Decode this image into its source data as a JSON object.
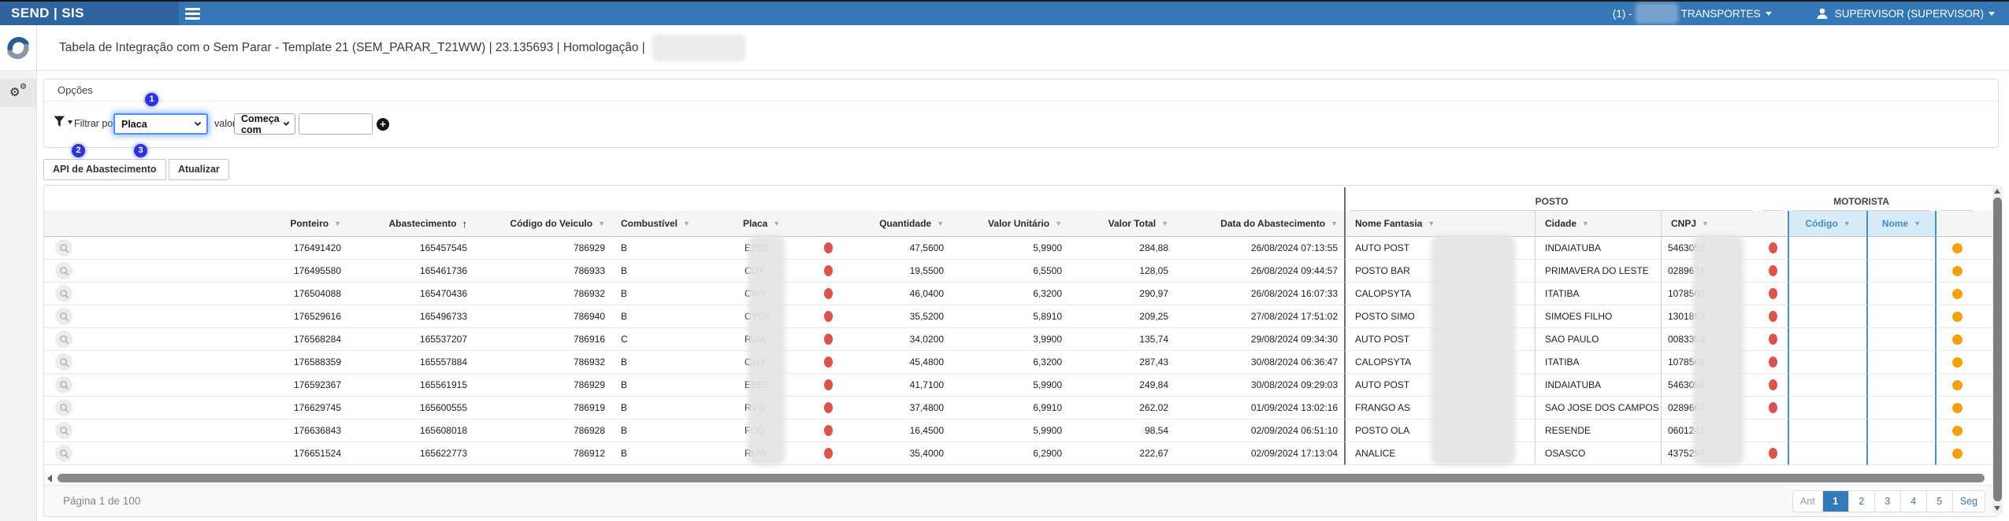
{
  "colors": {
    "navbar": "#3577b5",
    "navbar_brand": "#2d649e",
    "badge_blue": "#2d35d8",
    "red_dot": "#d9534f",
    "orange_dot": "#f3a00c",
    "motorista_col_bg": "#ddeefa",
    "motorista_col_text": "#3d8ebf",
    "active_page_bg": "#337ab7",
    "focused_select_border": "#4d90fe"
  },
  "navbar": {
    "brand": "SEND | SIS",
    "company_prefix": "(1) -",
    "company_name": "TRANSPORTES",
    "user": "SUPERVISOR (SUPERVISOR)"
  },
  "title_bar": {
    "title": "Tabela de Integração com o Sem Parar - Template 21 (SEM_PARAR_T21WW) | 23.135693 | Homologação |"
  },
  "options_panel": {
    "header": "Opções",
    "filter_label": "Filtrar por",
    "filter_field_value": "Placa",
    "value_label": "valor",
    "operator_value": "Começa com",
    "value_input": "",
    "value_input_placeholder": "",
    "badges": {
      "b1": "1",
      "b2": "2",
      "b3": "3"
    }
  },
  "buttons": {
    "api": "API de Abastecimento",
    "refresh": "Atualizar"
  },
  "table": {
    "groups": {
      "posto": "POSTO",
      "motorista": "MOTORISTA"
    },
    "headers": {
      "ponteiro": "Ponteiro",
      "abastecimento": "Abastecimento",
      "codigo_veiculo": "Código do Veiculo",
      "combustivel": "Combustível",
      "placa": "Placa",
      "quantidade": "Quantidade",
      "valor_unitario": "Valor Unitário",
      "valor_total": "Valor Total",
      "data_abastecimento": "Data do Abastecimento",
      "nome_fantasia": "Nome Fantasia",
      "cidade": "Cidade",
      "cnpj": "CNPJ",
      "codigo_motorista": "Código",
      "nome_motorista": "Nome"
    },
    "rows": [
      {
        "ponteiro": "176491420",
        "abastecimento": "165457545",
        "codigo_veiculo": "786929",
        "combustivel": "B",
        "placa": "EBB2",
        "dot1": true,
        "quantidade": "47,5600",
        "valor_unitario": "5,9900",
        "valor_total": "284,88",
        "data_abastecimento": "26/08/2024 07:13:55",
        "nome_fantasia": "AUTO POST",
        "cidade": "INDAIATUBA",
        "cnpj": "5463053",
        "dot2": true,
        "codigo_motorista": "",
        "nome_motorista": "",
        "dot3": true
      },
      {
        "ponteiro": "176495580",
        "abastecimento": "165461736",
        "codigo_veiculo": "786933",
        "combustivel": "B",
        "placa": "CUY",
        "dot1": true,
        "quantidade": "19,5500",
        "valor_unitario": "6,5500",
        "valor_total": "128,05",
        "data_abastecimento": "26/08/2024 09:44:57",
        "nome_fantasia": "POSTO BAR",
        "cidade": "PRIMAVERA DO LESTE",
        "cnpj": "0289671",
        "dot2": true,
        "codigo_motorista": "",
        "nome_motorista": "",
        "dot3": true
      },
      {
        "ponteiro": "176504088",
        "abastecimento": "165470436",
        "codigo_veiculo": "786932",
        "combustivel": "B",
        "placa": "CWY",
        "dot1": true,
        "quantidade": "46,0400",
        "valor_unitario": "6,3200",
        "valor_total": "290,97",
        "data_abastecimento": "26/08/2024 16:07:33",
        "nome_fantasia": "CALOPSYTA",
        "cidade": "ITATIBA",
        "cnpj": "1078568",
        "dot2": true,
        "codigo_motorista": "",
        "nome_motorista": "",
        "dot3": true
      },
      {
        "ponteiro": "176529616",
        "abastecimento": "165496733",
        "codigo_veiculo": "786940",
        "combustivel": "B",
        "placa": "CYS8",
        "dot1": true,
        "quantidade": "35,5200",
        "valor_unitario": "5,8910",
        "valor_total": "209,25",
        "data_abastecimento": "27/08/2024 17:51:02",
        "nome_fantasia": "POSTO SIMO",
        "cidade": "SIMOES FILHO",
        "cnpj": "1301853",
        "dot2": true,
        "codigo_motorista": "",
        "nome_motorista": "",
        "dot3": true
      },
      {
        "ponteiro": "176568284",
        "abastecimento": "165537207",
        "codigo_veiculo": "786916",
        "combustivel": "C",
        "placa": "RUW",
        "dot1": true,
        "quantidade": "34,0200",
        "valor_unitario": "3,9900",
        "valor_total": "135,74",
        "data_abastecimento": "29/08/2024 09:34:30",
        "nome_fantasia": "AUTO POST",
        "cidade": "SAO PAULO",
        "cnpj": "0083353",
        "dot2": true,
        "codigo_motorista": "",
        "nome_motorista": "",
        "dot3": true
      },
      {
        "ponteiro": "176588359",
        "abastecimento": "165557884",
        "codigo_veiculo": "786932",
        "combustivel": "B",
        "placa": "CWY",
        "dot1": true,
        "quantidade": "45,4800",
        "valor_unitario": "6,3200",
        "valor_total": "287,43",
        "data_abastecimento": "30/08/2024 06:36:47",
        "nome_fantasia": "CALOPSYTA",
        "cidade": "ITATIBA",
        "cnpj": "1078568",
        "dot2": true,
        "codigo_motorista": "",
        "nome_motorista": "",
        "dot3": true
      },
      {
        "ponteiro": "176592367",
        "abastecimento": "165561915",
        "codigo_veiculo": "786929",
        "combustivel": "B",
        "placa": "EBB2",
        "dot1": true,
        "quantidade": "41,7100",
        "valor_unitario": "5,9900",
        "valor_total": "249,84",
        "data_abastecimento": "30/08/2024 09:29:03",
        "nome_fantasia": "AUTO POST",
        "cidade": "INDAIATUBA",
        "cnpj": "5463053",
        "dot2": true,
        "codigo_motorista": "",
        "nome_motorista": "",
        "dot3": true
      },
      {
        "ponteiro": "176629745",
        "abastecimento": "165600555",
        "codigo_veiculo": "786919",
        "combustivel": "B",
        "placa": "RVG",
        "dot1": true,
        "quantidade": "37,4800",
        "valor_unitario": "6,9910",
        "valor_total": "262,02",
        "data_abastecimento": "01/09/2024 13:02:16",
        "nome_fantasia": "FRANGO AS",
        "cidade": "SAO JOSE DOS CAMPOS",
        "cnpj": "0289667",
        "dot2": true,
        "codigo_motorista": "",
        "nome_motorista": "",
        "dot3": true
      },
      {
        "ponteiro": "176636843",
        "abastecimento": "165608018",
        "codigo_veiculo": "786928",
        "combustivel": "B",
        "placa": "FOQ",
        "dot1": true,
        "quantidade": "16,4500",
        "valor_unitario": "5,9900",
        "valor_total": "98,54",
        "data_abastecimento": "02/09/2024 06:51:10",
        "nome_fantasia": "POSTO OLA",
        "cidade": "RESENDE",
        "cnpj": "0601241",
        "dot2": false,
        "codigo_motorista": "",
        "nome_motorista": "",
        "dot3": true
      },
      {
        "ponteiro": "176651524",
        "abastecimento": "165622773",
        "codigo_veiculo": "786912",
        "combustivel": "B",
        "placa": "RUW",
        "dot1": true,
        "quantidade": "35,4000",
        "valor_unitario": "6,2900",
        "valor_total": "222,67",
        "data_abastecimento": "02/09/2024 17:13:04",
        "nome_fantasia": "ANALICE",
        "cidade": "OSASCO",
        "cnpj": "4375297",
        "dot2": true,
        "codigo_motorista": "",
        "nome_motorista": "",
        "dot3": true
      }
    ]
  },
  "footer": {
    "page_info": "Página 1 de 100",
    "pagination": [
      {
        "label": "Ant",
        "state": "disabled"
      },
      {
        "label": "1",
        "state": "active"
      },
      {
        "label": "2",
        "state": "normal"
      },
      {
        "label": "3",
        "state": "normal"
      },
      {
        "label": "4",
        "state": "normal"
      },
      {
        "label": "5",
        "state": "normal"
      },
      {
        "label": "Seg",
        "state": "normal"
      }
    ]
  }
}
